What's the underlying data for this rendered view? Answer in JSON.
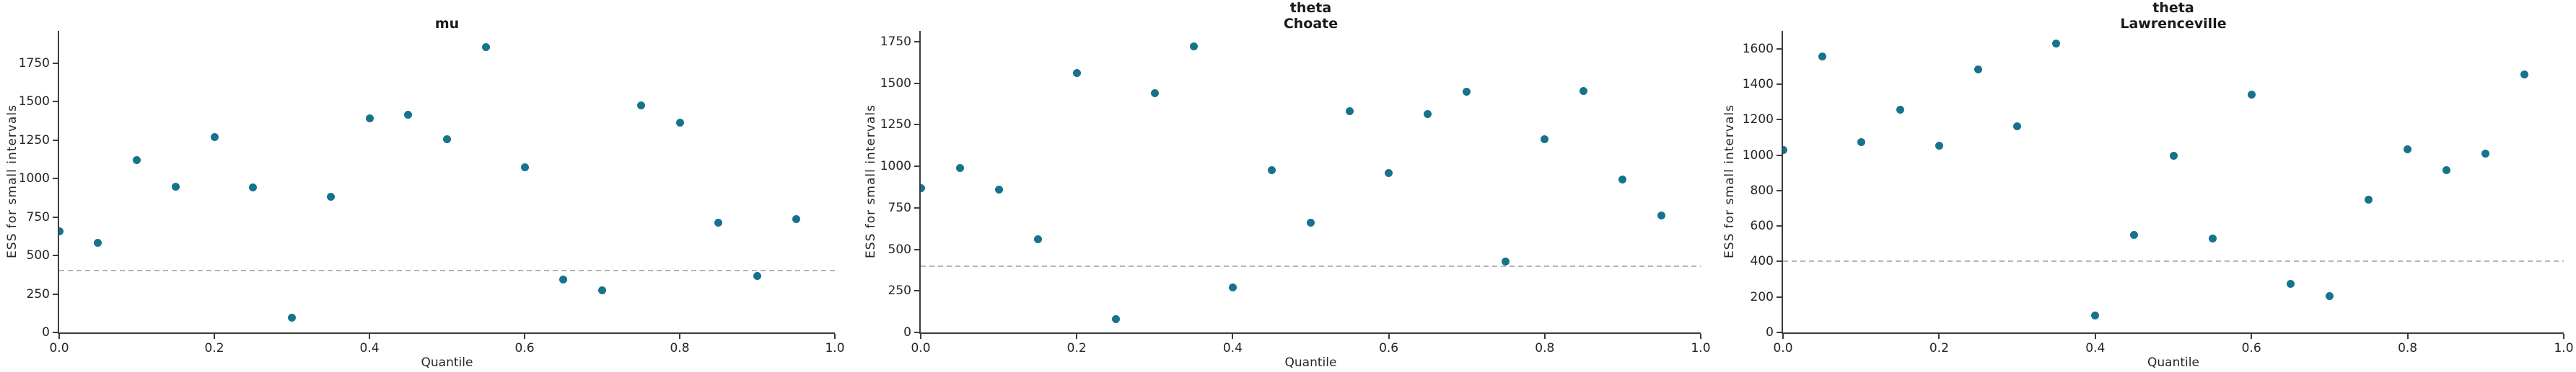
{
  "figure": {
    "background_color": "#ffffff",
    "text_color": "#262626"
  },
  "chart_data": [
    {
      "type": "scatter",
      "title_lines": [
        "mu"
      ],
      "xlabel": "Quantile",
      "ylabel": "ESS for small intervals",
      "x": [
        0.0,
        0.05,
        0.1,
        0.15,
        0.2,
        0.25,
        0.3,
        0.35,
        0.4,
        0.45,
        0.5,
        0.55,
        0.6,
        0.65,
        0.7,
        0.75,
        0.8,
        0.85,
        0.9,
        0.95
      ],
      "y": [
        655,
        580,
        1120,
        945,
        1270,
        940,
        95,
        880,
        1390,
        1415,
        1255,
        1855,
        1075,
        345,
        275,
        1475,
        1365,
        715,
        365,
        735
      ],
      "xticks": [
        0.0,
        0.2,
        0.4,
        0.6,
        0.8,
        1.0
      ],
      "yticks": [
        0,
        250,
        500,
        750,
        1000,
        1250,
        1500,
        1750
      ],
      "xlim": [
        0,
        1
      ],
      "ylim": [
        0,
        1959
      ],
      "reference_line_y": 400,
      "point_color": "#17728b",
      "reference_line_color": "#b4b4b4",
      "grid": false,
      "legend": "none"
    },
    {
      "type": "scatter",
      "title_lines": [
        "theta",
        "Choate"
      ],
      "xlabel": "Quantile",
      "ylabel": "ESS for small intervals",
      "x": [
        0.0,
        0.05,
        0.1,
        0.15,
        0.2,
        0.25,
        0.3,
        0.35,
        0.4,
        0.45,
        0.5,
        0.55,
        0.6,
        0.65,
        0.7,
        0.75,
        0.8,
        0.85,
        0.9,
        0.95
      ],
      "y": [
        870,
        990,
        860,
        560,
        1560,
        80,
        1440,
        1720,
        270,
        975,
        660,
        1330,
        960,
        1315,
        1450,
        425,
        1165,
        1455,
        920,
        705
      ],
      "xticks": [
        0.0,
        0.2,
        0.4,
        0.6,
        0.8,
        1.0
      ],
      "yticks": [
        0,
        250,
        500,
        750,
        1000,
        1250,
        1500,
        1750
      ],
      "xlim": [
        0,
        1
      ],
      "ylim": [
        0,
        1815
      ],
      "reference_line_y": 400,
      "point_color": "#17728b",
      "reference_line_color": "#b4b4b4",
      "grid": false,
      "legend": "none"
    },
    {
      "type": "scatter",
      "title_lines": [
        "theta",
        "Lawrenceville"
      ],
      "xlabel": "Quantile",
      "ylabel": "ESS for small intervals",
      "x": [
        0.0,
        0.05,
        0.1,
        0.15,
        0.2,
        0.25,
        0.3,
        0.35,
        0.4,
        0.45,
        0.5,
        0.55,
        0.6,
        0.65,
        0.7,
        0.75,
        0.8,
        0.85,
        0.9,
        0.95
      ],
      "y": [
        1030,
        1555,
        1075,
        1255,
        1055,
        1485,
        1165,
        1630,
        95,
        550,
        995,
        530,
        1340,
        275,
        205,
        750,
        1035,
        915,
        1010,
        1455
      ],
      "xticks": [
        0.0,
        0.2,
        0.4,
        0.6,
        0.8,
        1.0
      ],
      "yticks": [
        0,
        200,
        400,
        600,
        800,
        1000,
        1200,
        1400,
        1600
      ],
      "xlim": [
        0,
        1
      ],
      "ylim": [
        0,
        1701
      ],
      "reference_line_y": 400,
      "point_color": "#17728b",
      "reference_line_color": "#b4b4b4",
      "grid": false,
      "legend": "none"
    }
  ]
}
